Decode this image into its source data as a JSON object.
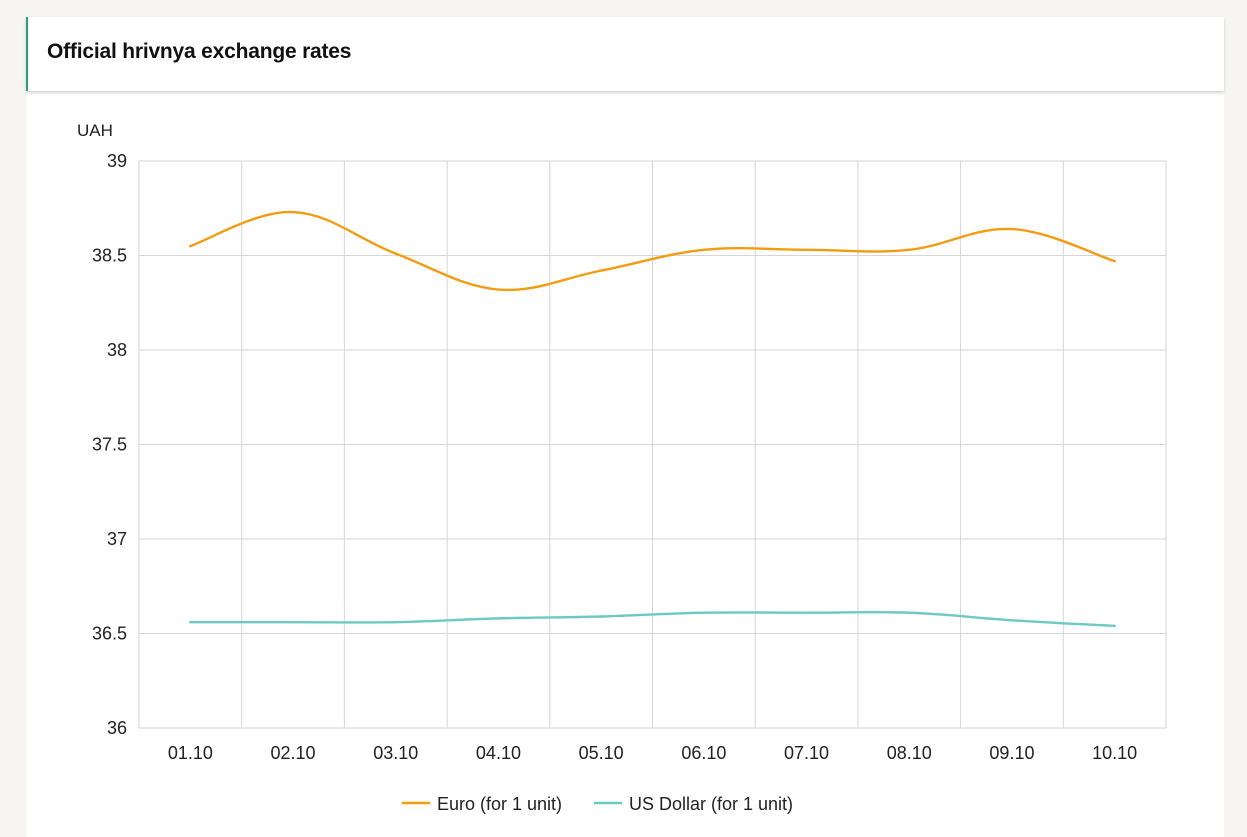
{
  "header": {
    "title": "Official hrivnya exchange rates"
  },
  "chart_data": {
    "type": "line",
    "title": "",
    "ylabel": "UAH",
    "xlabel": "",
    "categories": [
      "01.10",
      "02.10",
      "03.10",
      "04.10",
      "05.10",
      "06.10",
      "07.10",
      "08.10",
      "09.10",
      "10.10"
    ],
    "ylim": [
      36,
      39
    ],
    "yticks": [
      36,
      36.5,
      37,
      37.5,
      38,
      38.5,
      39
    ],
    "ytick_labels": [
      "36",
      "36.5",
      "37",
      "37.5",
      "38",
      "38.5",
      "39"
    ],
    "grid": true,
    "legend_position": "bottom",
    "series": [
      {
        "name": "Euro (for 1 unit)",
        "color": "#f39c12",
        "values": [
          38.55,
          38.73,
          38.51,
          38.32,
          38.42,
          38.53,
          38.53,
          38.53,
          38.64,
          38.47
        ]
      },
      {
        "name": "US Dollar (for 1 unit)",
        "color": "#6cc9c4",
        "values": [
          36.56,
          36.56,
          36.56,
          36.58,
          36.59,
          36.61,
          36.61,
          36.61,
          36.57,
          36.54
        ]
      }
    ]
  }
}
